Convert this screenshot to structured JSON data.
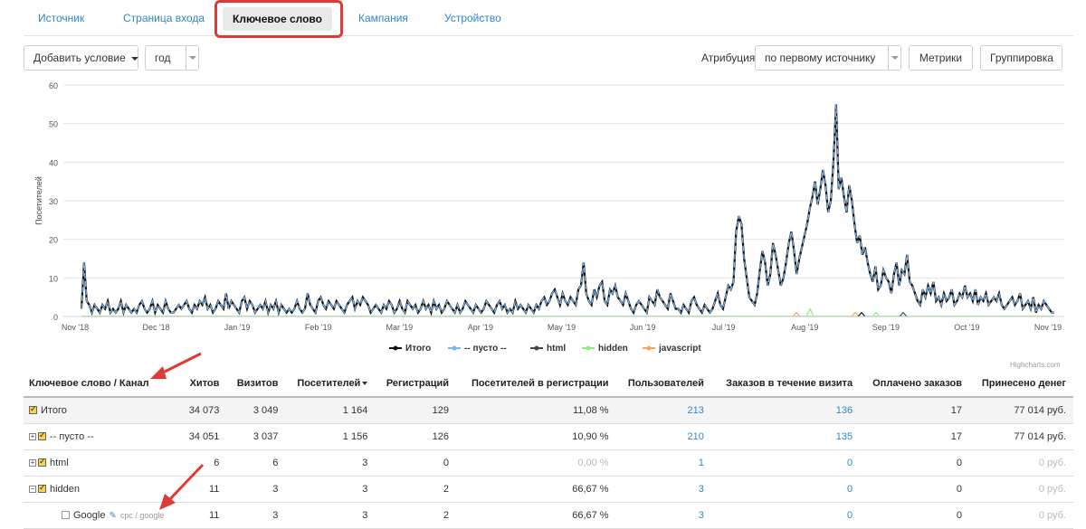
{
  "tabs": [
    {
      "label": "Источник"
    },
    {
      "label": "Страница входа"
    },
    {
      "label": "Ключевое слово"
    },
    {
      "label": "Кампания"
    },
    {
      "label": "Устройство"
    }
  ],
  "toolbar": {
    "add_condition": "Добавить условие",
    "period": "год",
    "attribution_label": "Атрибуция",
    "attribution_value": "по первому источнику",
    "metrics": "Метрики",
    "grouping": "Группировка"
  },
  "chart_data": {
    "type": "line",
    "ylabel": "Посетителей",
    "ylim": [
      0,
      60
    ],
    "yticks": [
      0,
      10,
      20,
      30,
      40,
      50,
      60
    ],
    "x_ticks": [
      "Nov '18",
      "Dec '18",
      "Jan '19",
      "Feb '19",
      "Mar '19",
      "Apr '19",
      "May '19",
      "Jun '19",
      "Jul '19",
      "Aug '19",
      "Sep '19",
      "Oct '19",
      "Nov '19"
    ],
    "x_range": [
      "2018-11-01",
      "2019-11-01"
    ],
    "series_styles": [
      {
        "name": "Итого",
        "color": "#111111"
      },
      {
        "name": "-- пусто --",
        "color": "#7cb5ec"
      },
      {
        "name": "html",
        "color": "#434348"
      },
      {
        "name": "hidden",
        "color": "#90ed7d"
      },
      {
        "name": "javascript",
        "color": "#f7a35c"
      }
    ],
    "series": [
      {
        "name": "Итого",
        "values": [
          2,
          14,
          4,
          3,
          1,
          3,
          2,
          1,
          3,
          2,
          4,
          1,
          2,
          1,
          2,
          4,
          1,
          3,
          2,
          1,
          2,
          1,
          3,
          4,
          2,
          1,
          2,
          4,
          1,
          3,
          2,
          1,
          4,
          2,
          1,
          1,
          2,
          3,
          2,
          3,
          4,
          2,
          1,
          3,
          2,
          4,
          3,
          5,
          2,
          3,
          1,
          2,
          4,
          3,
          2,
          6,
          2,
          4,
          3,
          2,
          1,
          4,
          5,
          2,
          4,
          3,
          1,
          2,
          3,
          2,
          4,
          1,
          3,
          2,
          4,
          1,
          3,
          2,
          1,
          2,
          1,
          2,
          4,
          2,
          1,
          2,
          6,
          3,
          2,
          1,
          4,
          5,
          3,
          2,
          4,
          3,
          2,
          4,
          3,
          2,
          1,
          3,
          4,
          5,
          2,
          4,
          3,
          5,
          4,
          3,
          1,
          2,
          3,
          2,
          1,
          3,
          2,
          4,
          3,
          1,
          2,
          4,
          2,
          1,
          4,
          3,
          2,
          3,
          1,
          2,
          4,
          2,
          3,
          1,
          4,
          2,
          3,
          1,
          2,
          4,
          3,
          2,
          1,
          3,
          1,
          2,
          4,
          3,
          2,
          1,
          3,
          2,
          1,
          2,
          4,
          3,
          2,
          1,
          3,
          4,
          2,
          3,
          1,
          2,
          1,
          4,
          2,
          3,
          2,
          1,
          3,
          2,
          1,
          3,
          2,
          4,
          5,
          3,
          4,
          6,
          7,
          5,
          3,
          6,
          4,
          3,
          5,
          4,
          3,
          7,
          8,
          14,
          6,
          4,
          3,
          7,
          5,
          8,
          9,
          4,
          3,
          7,
          6,
          8,
          5,
          4,
          3,
          6,
          4,
          2,
          1,
          3,
          4,
          3,
          2,
          1,
          5,
          4,
          3,
          7,
          5,
          4,
          3,
          2,
          6,
          4,
          2,
          2,
          1,
          3,
          2,
          1,
          4,
          5,
          3,
          2,
          1,
          3,
          2,
          1,
          2,
          4,
          6,
          3,
          2,
          5,
          8,
          7,
          9,
          22,
          26,
          24,
          15,
          10,
          5,
          4,
          3,
          6,
          12,
          17,
          14,
          8,
          11,
          19,
          16,
          12,
          8,
          10,
          14,
          19,
          22,
          17,
          11,
          15,
          18,
          21,
          24,
          28,
          31,
          35,
          29,
          33,
          38,
          34,
          27,
          30,
          40,
          55,
          33,
          36,
          31,
          27,
          34,
          30,
          24,
          19,
          21,
          16,
          18,
          14,
          11,
          9,
          13,
          7,
          8,
          12,
          10,
          9,
          6,
          11,
          14,
          8,
          12,
          11,
          16,
          9,
          8,
          6,
          4,
          3,
          7,
          5,
          8,
          6,
          9,
          4,
          5,
          3,
          6,
          4,
          5,
          7,
          3,
          4,
          6,
          5,
          8,
          5,
          6,
          4,
          7,
          3,
          5,
          4,
          6,
          3,
          4,
          5,
          4,
          6,
          3,
          2,
          3,
          4,
          5,
          3,
          4,
          6,
          2,
          3,
          4,
          2,
          5,
          1,
          3,
          2,
          4,
          3,
          2,
          1,
          1
        ]
      },
      {
        "name": "-- пусто --",
        "values": [
          2,
          14,
          4,
          3,
          1,
          3,
          2,
          1,
          3,
          2,
          4,
          1,
          2,
          1,
          2,
          4,
          1,
          3,
          2,
          1,
          2,
          1,
          3,
          4,
          2,
          1,
          2,
          4,
          1,
          3,
          2,
          1,
          4,
          2,
          1,
          1,
          2,
          3,
          2,
          3,
          4,
          2,
          1,
          3,
          2,
          4,
          3,
          5,
          2,
          3,
          1,
          2,
          4,
          3,
          2,
          6,
          2,
          4,
          3,
          2,
          1,
          4,
          5,
          2,
          4,
          3,
          1,
          2,
          3,
          2,
          4,
          1,
          3,
          2,
          4,
          1,
          3,
          2,
          1,
          2,
          1,
          2,
          4,
          2,
          1,
          2,
          6,
          3,
          2,
          1,
          4,
          5,
          3,
          2,
          4,
          3,
          2,
          4,
          3,
          2,
          1,
          3,
          4,
          5,
          2,
          4,
          3,
          5,
          4,
          3,
          1,
          2,
          3,
          2,
          1,
          3,
          2,
          4,
          3,
          1,
          2,
          4,
          2,
          1,
          4,
          3,
          2,
          3,
          1,
          2,
          4,
          2,
          3,
          1,
          4,
          2,
          3,
          1,
          2,
          4,
          3,
          2,
          1,
          3,
          1,
          2,
          4,
          3,
          2,
          1,
          3,
          2,
          1,
          2,
          4,
          3,
          2,
          1,
          3,
          4,
          2,
          3,
          1,
          2,
          1,
          4,
          2,
          3,
          2,
          1,
          3,
          2,
          1,
          3,
          2,
          4,
          5,
          3,
          4,
          6,
          7,
          5,
          3,
          6,
          4,
          3,
          5,
          4,
          3,
          7,
          8,
          14,
          6,
          4,
          3,
          7,
          5,
          8,
          9,
          4,
          3,
          7,
          6,
          8,
          5,
          4,
          3,
          6,
          4,
          2,
          1,
          3,
          4,
          3,
          2,
          1,
          5,
          4,
          3,
          7,
          5,
          4,
          3,
          2,
          6,
          4,
          2,
          2,
          1,
          3,
          2,
          1,
          4,
          5,
          3,
          2,
          1,
          3,
          2,
          1,
          2,
          4,
          6,
          3,
          2,
          5,
          8,
          7,
          9,
          22,
          26,
          24,
          15,
          10,
          5,
          4,
          3,
          6,
          12,
          17,
          14,
          8,
          11,
          19,
          16,
          12,
          8,
          10,
          14,
          19,
          22,
          17,
          11,
          15,
          18,
          21,
          24,
          28,
          31,
          35,
          29,
          33,
          38,
          34,
          27,
          30,
          40,
          55,
          33,
          36,
          31,
          27,
          34,
          30,
          24,
          19,
          21,
          16,
          18,
          14,
          11,
          9,
          13,
          7,
          8,
          12,
          10,
          9,
          6,
          11,
          14,
          8,
          12,
          11,
          16,
          9,
          8,
          6,
          4,
          3,
          7,
          5,
          8,
          6,
          9,
          4,
          5,
          3,
          6,
          4,
          5,
          7,
          3,
          4,
          6,
          5,
          8,
          5,
          6,
          4,
          7,
          3,
          5,
          4,
          6,
          3,
          4,
          5,
          4,
          6,
          3,
          2,
          3,
          4,
          5,
          3,
          4,
          6,
          2,
          3,
          4,
          2,
          5,
          1,
          3,
          2,
          4,
          3,
          2,
          1,
          1
        ]
      },
      {
        "name": "html",
        "values": "mostly 0 with spikes near Aug–Sep '19"
      },
      {
        "name": "hidden",
        "values": "mostly 0 with small spikes near Aug '19"
      },
      {
        "name": "javascript",
        "values": "mostly 0"
      }
    ]
  },
  "credits": "Highcharts.com",
  "table": {
    "headers": [
      "Ключевое слово / Канал",
      "Хитов",
      "Визитов",
      "Посетителей",
      "Регистраций",
      "Посетителей в регистрации",
      "Пользователей",
      "Заказов в течение визита",
      "Оплачено заказов",
      "Принесено денег"
    ],
    "rows": [
      {
        "name": "Итого",
        "hits": "34 073",
        "visits": "3 049",
        "visitors": "1 164",
        "regs": "129",
        "conv": "11,08 %",
        "users": "213",
        "orders": "136",
        "paid": "17",
        "money": "77 014 руб."
      },
      {
        "name": "-- пусто --",
        "hits": "34 051",
        "visits": "3 037",
        "visitors": "1 156",
        "regs": "126",
        "conv": "10,90 %",
        "users": "210",
        "orders": "135",
        "paid": "17",
        "money": "77 014 руб."
      },
      {
        "name": "html",
        "hits": "6",
        "visits": "6",
        "visitors": "3",
        "regs": "0",
        "conv": "0,00 %",
        "users": "1",
        "orders": "0",
        "paid": "0",
        "money": "0 руб."
      },
      {
        "name": "hidden",
        "hits": "11",
        "visits": "3",
        "visitors": "3",
        "regs": "2",
        "conv": "66,67 %",
        "users": "3",
        "orders": "0",
        "paid": "0",
        "money": "0 руб."
      },
      {
        "name": "Google",
        "source": "cpc / google",
        "hits": "11",
        "visits": "3",
        "visitors": "3",
        "regs": "2",
        "conv": "66,67 %",
        "users": "3",
        "orders": "0",
        "paid": "0",
        "money": "0 руб."
      }
    ]
  }
}
